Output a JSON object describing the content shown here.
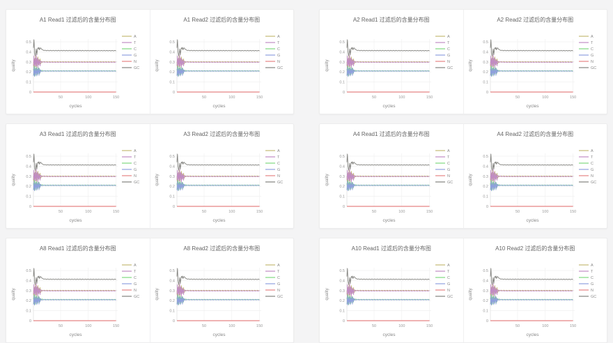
{
  "page": {
    "background": "#f4f4f5",
    "card_bg": "#ffffff",
    "card_border": "#ededee",
    "card_divider": "#f0f0f1"
  },
  "chart_data": {
    "type": "line",
    "xlabel": "cycles",
    "ylabel": "quality",
    "x_ticks": [
      50,
      100,
      150
    ],
    "y_ticks": [
      0,
      0.1,
      0.2,
      0.3,
      0.4,
      0.5
    ],
    "xlim": [
      1,
      153
    ],
    "ylim": [
      0,
      0.55
    ],
    "grid": true,
    "legend_position": "right-outside",
    "legend": [
      "A",
      "T",
      "C",
      "G",
      "N",
      "GC"
    ],
    "colors": {
      "A": "#c4ba74",
      "T": "#c18bc4",
      "C": "#7ed87e",
      "G": "#8f9fde",
      "N": "#e58383",
      "GC": "#82827e",
      "grid": "#eeeeee",
      "axis": "#dddddd",
      "tick_text": "#999999",
      "label_text": "#888888",
      "title_text": "#666666"
    },
    "x_control": [
      1,
      2,
      3,
      4,
      5,
      6,
      7,
      8,
      9,
      10,
      11,
      12,
      13,
      14,
      16,
      18,
      22,
      30,
      150
    ],
    "series": [
      {
        "name": "A",
        "values": [
          0.3,
          0.22,
          0.33,
          0.28,
          0.36,
          0.25,
          0.33,
          0.29,
          0.35,
          0.27,
          0.32,
          0.3,
          0.33,
          0.28,
          0.305,
          0.3,
          0.302,
          0.301,
          0.301
        ]
      },
      {
        "name": "T",
        "values": [
          0.26,
          0.36,
          0.24,
          0.34,
          0.25,
          0.37,
          0.26,
          0.34,
          0.24,
          0.33,
          0.27,
          0.32,
          0.26,
          0.31,
          0.295,
          0.3,
          0.298,
          0.297,
          0.297
        ]
      },
      {
        "name": "C",
        "values": [
          0.23,
          0.17,
          0.26,
          0.16,
          0.24,
          0.19,
          0.25,
          0.17,
          0.23,
          0.2,
          0.24,
          0.18,
          0.22,
          0.205,
          0.215,
          0.212,
          0.211,
          0.211,
          0.211
        ]
      },
      {
        "name": "G",
        "values": [
          0.16,
          0.25,
          0.155,
          0.23,
          0.17,
          0.24,
          0.16,
          0.23,
          0.18,
          0.24,
          0.165,
          0.23,
          0.19,
          0.22,
          0.205,
          0.21,
          0.209,
          0.209,
          0.209
        ]
      },
      {
        "name": "N",
        "values": [
          0,
          0,
          0,
          0,
          0,
          0,
          0,
          0,
          0,
          0,
          0,
          0,
          0,
          0,
          0,
          0,
          0,
          0,
          0
        ]
      },
      {
        "name": "GC",
        "values": [
          0.44,
          0.52,
          0.4,
          0.36,
          0.39,
          0.43,
          0.37,
          0.41,
          0.44,
          0.43,
          0.445,
          0.42,
          0.435,
          0.44,
          0.425,
          0.418,
          0.414,
          0.413,
          0.412
        ]
      }
    ],
    "flat_noise": 0.0025,
    "flat_noise_start_cycle": 17,
    "charts": [
      {
        "title": "A1 Read1 过滤后的含量分布图"
      },
      {
        "title": "A1 Read2 过滤后的含量分布图"
      },
      {
        "title": "A2 Read1 过滤后的含量分布图"
      },
      {
        "title": "A2 Read2 过滤后的含量分布图"
      },
      {
        "title": "A3 Read1 过滤后的含量分布图"
      },
      {
        "title": "A3 Read2 过滤后的含量分布图"
      },
      {
        "title": "A4 Read1 过滤后的含量分布图"
      },
      {
        "title": "A4 Read2 过滤后的含量分布图"
      },
      {
        "title": "A8 Read1 过滤后的含量分布图"
      },
      {
        "title": "A8 Read2 过滤后的含量分布图"
      },
      {
        "title": "A10 Read1 过滤后的含量分布图"
      },
      {
        "title": "A10 Read2 过滤后的含量分布图"
      }
    ]
  }
}
